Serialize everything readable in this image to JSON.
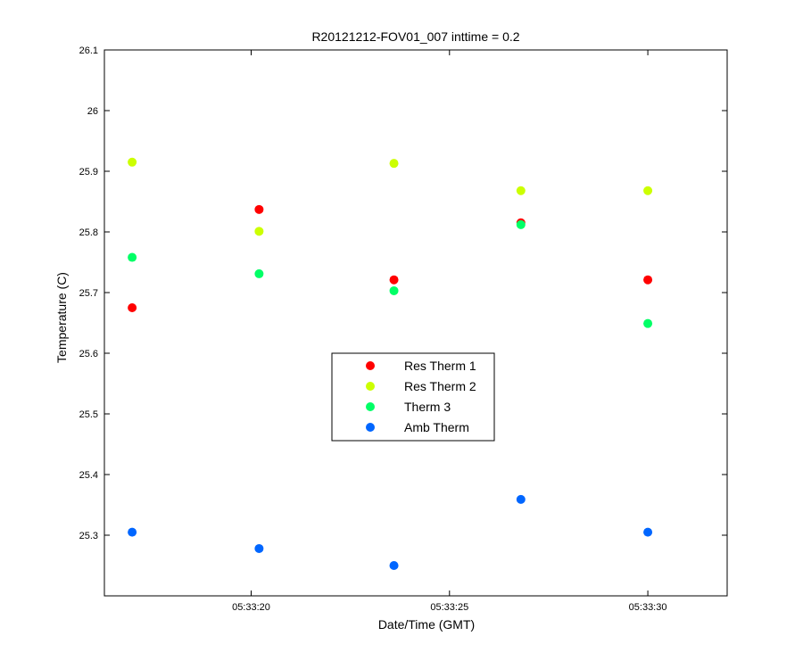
{
  "chart_data": {
    "type": "scatter",
    "title": "R20121212-FOV01_007 inttime = 0.2",
    "xlabel": "Date/Time (GMT)",
    "ylabel": "Temperature (C)",
    "x_unit": "seconds after 05:33:00 GMT",
    "xlim": [
      16.3,
      32.0
    ],
    "ylim": [
      25.2,
      26.1
    ],
    "xticks": [
      {
        "value": 20,
        "label": "05:33:20"
      },
      {
        "value": 25,
        "label": "05:33:25"
      },
      {
        "value": 30,
        "label": "05:33:30"
      }
    ],
    "yticks": [
      {
        "value": 25.3,
        "label": "25.3"
      },
      {
        "value": 25.4,
        "label": "25.4"
      },
      {
        "value": 25.5,
        "label": "25.5"
      },
      {
        "value": 25.6,
        "label": "25.6"
      },
      {
        "value": 25.7,
        "label": "25.7"
      },
      {
        "value": 25.8,
        "label": "25.8"
      },
      {
        "value": 25.9,
        "label": "25.9"
      },
      {
        "value": 26.0,
        "label": "26"
      },
      {
        "value": 26.1,
        "label": "26.1"
      }
    ],
    "x": [
      17.0,
      20.2,
      23.6,
      26.8,
      30.0
    ],
    "series": [
      {
        "name": "Res Therm 1",
        "color": "#ff0000",
        "values": [
          25.675,
          25.837,
          25.721,
          25.815,
          25.721
        ]
      },
      {
        "name": "Res Therm 2",
        "color": "#ccff00",
        "values": [
          25.915,
          25.801,
          25.913,
          25.868,
          25.868
        ]
      },
      {
        "name": "Therm 3",
        "color": "#00ff66",
        "values": [
          25.758,
          25.731,
          25.703,
          25.812,
          25.649
        ]
      },
      {
        "name": "Amb Therm",
        "color": "#0066ff",
        "values": [
          25.305,
          25.278,
          25.25,
          25.359,
          25.305
        ]
      }
    ],
    "legend": {
      "position": "center"
    },
    "grid": false
  }
}
